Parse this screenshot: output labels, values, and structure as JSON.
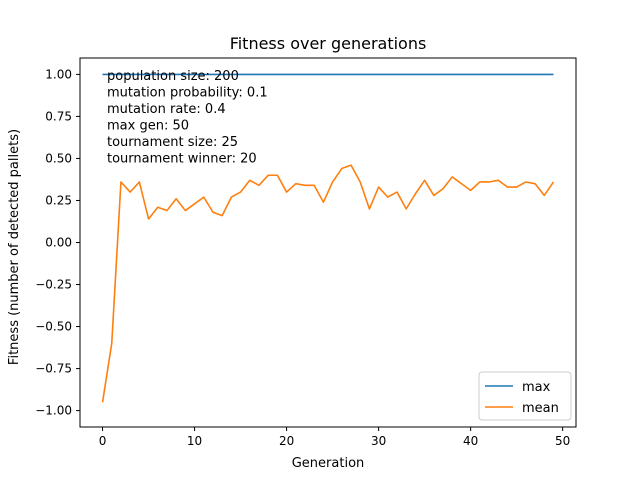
{
  "chart_data": {
    "type": "line",
    "title": "Fitness over generations",
    "xlabel": "Generation",
    "ylabel": "Fitness (number of detected pallets)",
    "xlim": [
      -2.45,
      51.45
    ],
    "ylim": [
      -1.0975,
      1.0975
    ],
    "x_ticks": [
      0,
      10,
      20,
      30,
      40,
      50
    ],
    "y_ticks": [
      -1.0,
      -0.75,
      -0.5,
      -0.25,
      0.0,
      0.25,
      0.5,
      0.75,
      1.0
    ],
    "x_tick_labels": [
      "0",
      "10",
      "20",
      "30",
      "40",
      "50"
    ],
    "y_tick_labels": [
      "−1.00",
      "−0.75",
      "−0.50",
      "−0.25",
      "0.00",
      "0.25",
      "0.50",
      "0.75",
      "1.00"
    ],
    "grid": false,
    "legend_position": "lower-right",
    "x": [
      0,
      1,
      2,
      3,
      4,
      5,
      6,
      7,
      8,
      9,
      10,
      11,
      12,
      13,
      14,
      15,
      16,
      17,
      18,
      19,
      20,
      21,
      22,
      23,
      24,
      25,
      26,
      27,
      28,
      29,
      30,
      31,
      32,
      33,
      34,
      35,
      36,
      37,
      38,
      39,
      40,
      41,
      42,
      43,
      44,
      45,
      46,
      47,
      48,
      49
    ],
    "series": [
      {
        "name": "max",
        "color": "#1f77b4",
        "values": [
          1,
          1,
          1,
          1,
          1,
          1,
          1,
          1,
          1,
          1,
          1,
          1,
          1,
          1,
          1,
          1,
          1,
          1,
          1,
          1,
          1,
          1,
          1,
          1,
          1,
          1,
          1,
          1,
          1,
          1,
          1,
          1,
          1,
          1,
          1,
          1,
          1,
          1,
          1,
          1,
          1,
          1,
          1,
          1,
          1,
          1,
          1,
          1,
          1,
          1
        ]
      },
      {
        "name": "mean",
        "color": "#ff7f0e",
        "values": [
          -0.95,
          -0.6,
          0.36,
          0.3,
          0.36,
          0.14,
          0.21,
          0.19,
          0.26,
          0.19,
          0.23,
          0.27,
          0.18,
          0.16,
          0.27,
          0.3,
          0.37,
          0.34,
          0.4,
          0.4,
          0.3,
          0.35,
          0.34,
          0.34,
          0.24,
          0.36,
          0.44,
          0.46,
          0.36,
          0.2,
          0.33,
          0.27,
          0.3,
          0.2,
          0.29,
          0.37,
          0.28,
          0.32,
          0.39,
          0.35,
          0.31,
          0.36,
          0.36,
          0.37,
          0.33,
          0.33,
          0.36,
          0.35,
          0.28,
          0.36
        ]
      }
    ],
    "annotation_lines": [
      "population size: 200",
      "mutation probability: 0.1",
      "mutation rate: 0.4",
      "max gen: 50",
      "tournament size: 25",
      "tournament winner: 20"
    ]
  }
}
